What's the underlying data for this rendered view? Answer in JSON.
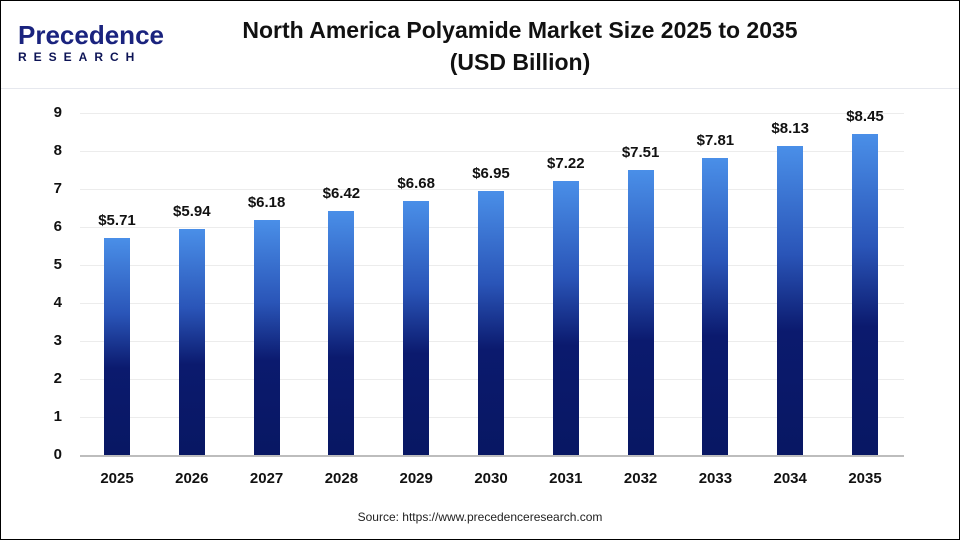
{
  "header": {
    "logo_line1": "Precedence",
    "logo_line2": "RESEARCH",
    "title_line1": "North America Polyamide Market Size 2025 to 2035",
    "title_line2": "(USD Billion)"
  },
  "colors": {
    "bar_top": "#4a8fe8",
    "bar_bottom": "#081763",
    "logo_dark": "#1a237e",
    "logo_accent": "#2962ff"
  },
  "source": "Source: https://www.precedenceresearch.com",
  "chart_data": {
    "type": "bar",
    "title": "North America Polyamide Market Size 2025 to 2035 (USD Billion)",
    "xlabel": "",
    "ylabel": "",
    "ylim": [
      0,
      9
    ],
    "yticks": [
      0,
      1,
      2,
      3,
      4,
      5,
      6,
      7,
      8,
      9
    ],
    "grid": true,
    "legend": null,
    "categories": [
      "2025",
      "2026",
      "2027",
      "2028",
      "2029",
      "2030",
      "2031",
      "2032",
      "2033",
      "2034",
      "2035"
    ],
    "values": [
      5.71,
      5.94,
      6.18,
      6.42,
      6.68,
      6.95,
      7.22,
      7.51,
      7.81,
      8.13,
      8.45
    ],
    "value_labels": [
      "$5.71",
      "$5.94",
      "$6.18",
      "$6.42",
      "$6.68",
      "$6.95",
      "$7.22",
      "$7.51",
      "$7.81",
      "$8.13",
      "$8.45"
    ]
  }
}
